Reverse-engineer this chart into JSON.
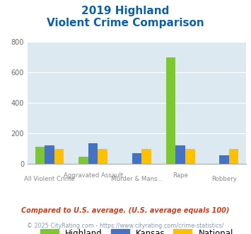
{
  "title_line1": "2019 Highland",
  "title_line2": "Violent Crime Comparison",
  "highland": [
    110,
    45,
    0,
    700,
    0
  ],
  "kansas": [
    120,
    135,
    70,
    120,
    55
  ],
  "national": [
    100,
    100,
    100,
    100,
    100
  ],
  "highland_color": "#7dc832",
  "kansas_color": "#4472c4",
  "national_color": "#ffc000",
  "ylim": [
    0,
    800
  ],
  "yticks": [
    0,
    200,
    400,
    600,
    800
  ],
  "plot_bg": "#dce9f0",
  "title_color": "#1060a0",
  "xlabel_row1": [
    "",
    "Aggravated Assault",
    "",
    "Rape",
    ""
  ],
  "xlabel_row2": [
    "All Violent Crime",
    "",
    "Murder & Mans...",
    "",
    "Robbery"
  ],
  "legend_labels": [
    "Highland",
    "Kansas",
    "National"
  ],
  "footer_text": "Compared to U.S. average. (U.S. average equals 100)",
  "footer2_text": "© 2025 CityRating.com - https://www.cityrating.com/crime-statistics/",
  "footer_color": "#c04020",
  "footer2_color": "#8899aa"
}
